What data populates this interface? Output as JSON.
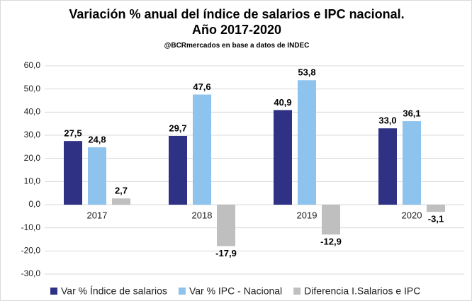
{
  "chart_data": {
    "type": "bar",
    "title": "Variación % anual del índice de salarios e IPC nacional. Año 2017-2020",
    "subtitle": "@BCRmercados en base a datos de INDEC",
    "categories": [
      "2017",
      "2018",
      "2019",
      "2020"
    ],
    "series": [
      {
        "name": "Var % Índice de salarios",
        "color": "#2e3184",
        "values": [
          27.5,
          29.7,
          40.9,
          33.0
        ],
        "value_labels": [
          "27,5",
          "29,7",
          "40,9",
          "33,0"
        ]
      },
      {
        "name": "Var % IPC - Nacional",
        "color": "#8ec3ee",
        "values": [
          24.8,
          47.6,
          53.8,
          36.1
        ],
        "value_labels": [
          "24,8",
          "47,6",
          "53,8",
          "36,1"
        ]
      },
      {
        "name": "Diferencia I.Salarios e IPC",
        "color": "#bfbfbf",
        "values": [
          2.7,
          -17.9,
          -12.9,
          -3.1
        ],
        "value_labels": [
          "2,7",
          "-17,9",
          "-12,9",
          "-3,1"
        ]
      }
    ],
    "ylim": [
      -30,
      60
    ],
    "yticks": [
      {
        "value": -30,
        "label": "-30,0"
      },
      {
        "value": -20,
        "label": "-20,0"
      },
      {
        "value": -10,
        "label": "-10,0"
      },
      {
        "value": 0,
        "label": "0,0"
      },
      {
        "value": 10,
        "label": "10,0"
      },
      {
        "value": 20,
        "label": "20,0"
      },
      {
        "value": 30,
        "label": "30,0"
      },
      {
        "value": 40,
        "label": "40,0"
      },
      {
        "value": 50,
        "label": "50,0"
      },
      {
        "value": 60,
        "label": "60,0"
      }
    ],
    "grid": true,
    "legend": "bottom"
  }
}
